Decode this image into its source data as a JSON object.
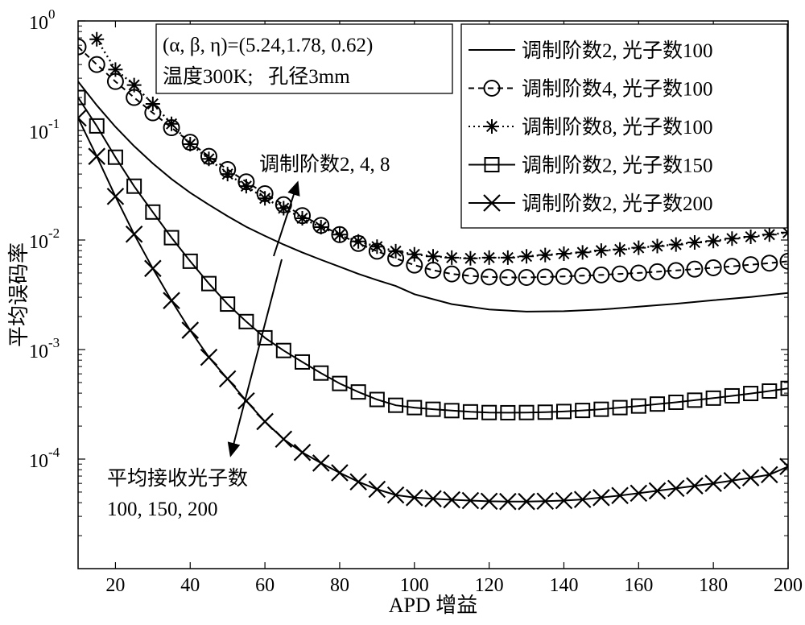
{
  "chart_data": {
    "type": "line",
    "xlabel": "APD 增益",
    "ylabel": "平均误码率",
    "xlim": [
      10,
      200
    ],
    "ylim": [
      1e-05,
      1
    ],
    "yscale": "log",
    "x_ticks": [
      20,
      40,
      60,
      80,
      100,
      120,
      140,
      160,
      180,
      200
    ],
    "y_ticks": [
      {
        "base": "10",
        "exp": "0",
        "value": 1
      },
      {
        "base": "10",
        "exp": "-1",
        "value": 0.1
      },
      {
        "base": "10",
        "exp": "-2",
        "value": 0.01
      },
      {
        "base": "10",
        "exp": "-3",
        "value": 0.001
      },
      {
        "base": "10",
        "exp": "-4",
        "value": 0.0001
      }
    ],
    "grid": false,
    "legend_position": "top-right",
    "param_box": {
      "line1": "(α, β, η)=(5.24,1.78, 0.62)",
      "line2": "温度300K;   孔径3mm"
    },
    "annotations": [
      {
        "text": "调制阶数2, 4, 8"
      },
      {
        "text": "平均接收光子数"
      },
      {
        "text": "100, 150, 200"
      }
    ],
    "series": [
      {
        "name": "调制阶数2, 光子数100",
        "line": "solid",
        "marker": "none",
        "color": "#000000",
        "x": [
          10,
          15,
          20,
          25,
          30,
          35,
          40,
          45,
          50,
          55,
          60,
          65,
          70,
          75,
          80,
          85,
          90,
          95,
          100,
          110,
          120,
          130,
          140,
          150,
          160,
          170,
          180,
          190,
          200
        ],
        "y": [
          0.28,
          0.17,
          0.108,
          0.072,
          0.05,
          0.036,
          0.027,
          0.021,
          0.0165,
          0.0132,
          0.0109,
          0.0091,
          0.0077,
          0.0066,
          0.0057,
          0.0049,
          0.0043,
          0.0038,
          0.0032,
          0.0026,
          0.00232,
          0.00222,
          0.00224,
          0.00232,
          0.00246,
          0.00262,
          0.00282,
          0.00302,
          0.00328
        ]
      },
      {
        "name": "调制阶数4, 光子数100",
        "line": "dashed",
        "marker": "circle",
        "color": "#000000",
        "x": [
          10,
          15,
          20,
          25,
          30,
          35,
          40,
          45,
          50,
          55,
          60,
          65,
          70,
          75,
          80,
          85,
          90,
          95,
          100,
          105,
          110,
          115,
          120,
          125,
          130,
          135,
          140,
          145,
          150,
          155,
          160,
          165,
          170,
          175,
          180,
          185,
          190,
          195,
          200
        ],
        "y": [
          0.58,
          0.4,
          0.28,
          0.2,
          0.145,
          0.106,
          0.078,
          0.058,
          0.044,
          0.034,
          0.0265,
          0.021,
          0.0167,
          0.0136,
          0.0112,
          0.0093,
          0.0079,
          0.0068,
          0.0059,
          0.0053,
          0.0049,
          0.0047,
          0.0046,
          0.00455,
          0.00455,
          0.0046,
          0.00465,
          0.00472,
          0.0048,
          0.0049,
          0.005,
          0.00513,
          0.00527,
          0.00542,
          0.00558,
          0.00575,
          0.00595,
          0.00615,
          0.0064
        ]
      },
      {
        "name": "调制阶数8, 光子数100",
        "line": "dotted",
        "marker": "star",
        "color": "#000000",
        "x": [
          15,
          20,
          25,
          30,
          35,
          40,
          45,
          50,
          55,
          60,
          65,
          70,
          75,
          80,
          85,
          90,
          95,
          100,
          105,
          110,
          115,
          120,
          125,
          130,
          135,
          140,
          145,
          150,
          155,
          160,
          165,
          170,
          175,
          180,
          185,
          190,
          195,
          200
        ],
        "y": [
          0.68,
          0.36,
          0.26,
          0.175,
          0.115,
          0.075,
          0.055,
          0.04,
          0.031,
          0.024,
          0.0195,
          0.0158,
          0.0131,
          0.0112,
          0.0097,
          0.0087,
          0.0079,
          0.0074,
          0.0071,
          0.0069,
          0.0068,
          0.0069,
          0.0069,
          0.0071,
          0.0073,
          0.0075,
          0.0077,
          0.008,
          0.0082,
          0.0085,
          0.0088,
          0.0091,
          0.0095,
          0.0098,
          0.0103,
          0.0107,
          0.0112,
          0.0117
        ]
      },
      {
        "name": "调制阶数2, 光子数150",
        "line": "solid",
        "marker": "square",
        "color": "#000000",
        "x": [
          10,
          15,
          20,
          25,
          30,
          35,
          40,
          45,
          50,
          55,
          60,
          65,
          70,
          75,
          80,
          85,
          90,
          95,
          100,
          105,
          110,
          115,
          120,
          125,
          130,
          135,
          140,
          145,
          150,
          155,
          160,
          165,
          170,
          175,
          180,
          185,
          190,
          195,
          200
        ],
        "y": [
          0.2,
          0.11,
          0.057,
          0.031,
          0.018,
          0.0105,
          0.0064,
          0.004,
          0.0026,
          0.0018,
          0.00128,
          0.00098,
          0.00077,
          0.00061,
          0.00049,
          0.00041,
          0.00035,
          0.00031,
          0.000295,
          0.000285,
          0.000277,
          0.00027,
          0.000266,
          0.000265,
          0.000266,
          0.000268,
          0.000272,
          0.000278,
          0.000285,
          0.000295,
          0.000305,
          0.000318,
          0.00033,
          0.000345,
          0.00036,
          0.000378,
          0.000397,
          0.000418,
          0.000442
        ]
      },
      {
        "name": "调制阶数2, 光子数200",
        "line": "solid",
        "marker": "x",
        "color": "#000000",
        "x": [
          10,
          15,
          20,
          25,
          30,
          35,
          40,
          45,
          50,
          55,
          60,
          65,
          70,
          75,
          80,
          85,
          90,
          95,
          100,
          105,
          110,
          115,
          120,
          125,
          130,
          135,
          140,
          145,
          150,
          155,
          160,
          165,
          170,
          175,
          180,
          185,
          190,
          195,
          200
        ],
        "y": [
          0.13,
          0.058,
          0.025,
          0.0113,
          0.0055,
          0.0028,
          0.0015,
          0.00085,
          0.00054,
          0.00034,
          0.00022,
          0.000152,
          0.000115,
          9.2e-05,
          7.5e-05,
          6.2e-05,
          5.3e-05,
          4.7e-05,
          4.45e-05,
          4.35e-05,
          4.25e-05,
          4.18e-05,
          4.12e-05,
          4.1e-05,
          4.1e-05,
          4.13e-05,
          4.18e-05,
          4.28e-05,
          4.45e-05,
          4.65e-05,
          4.88e-05,
          5.13e-05,
          5.4e-05,
          5.7e-05,
          6e-05,
          6.36e-05,
          6.75e-05,
          7.2e-05,
          8.55e-05
        ]
      }
    ]
  }
}
